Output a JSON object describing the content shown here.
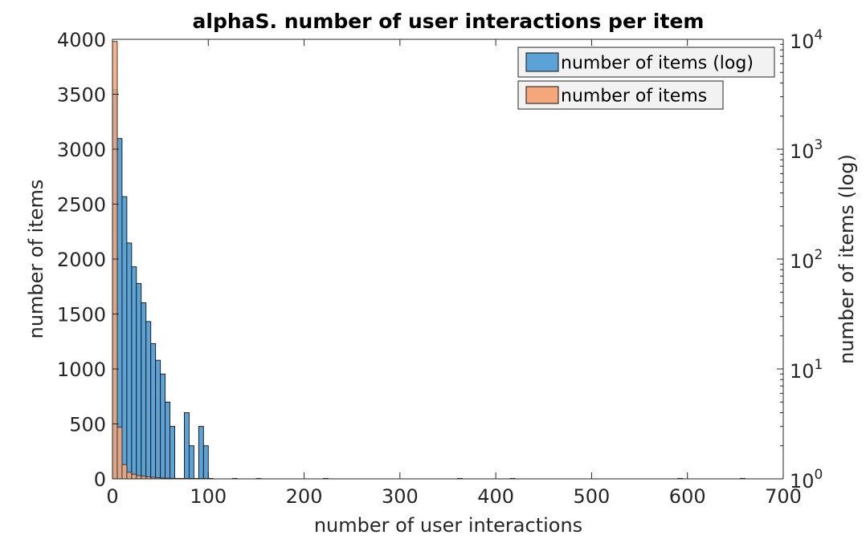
{
  "chart_data": {
    "type": "bar",
    "title": "alphaS. number of user interactions per item",
    "xlabel": "number of user interactions",
    "ylabel_left": "number of items",
    "ylabel_right": "number of items (log)",
    "xlim": [
      0,
      700
    ],
    "ylim_left": [
      0,
      4000
    ],
    "ylim_right": [
      1,
      10000
    ],
    "right_scale": "log",
    "x_ticks": [
      0,
      100,
      200,
      300,
      400,
      500,
      600,
      700
    ],
    "y_left_ticks": [
      0,
      500,
      1000,
      1500,
      2000,
      2500,
      3000,
      3500,
      4000
    ],
    "y_right_ticks": [
      {
        "base": "10",
        "exp": "0",
        "value": 1
      },
      {
        "base": "10",
        "exp": "1",
        "value": 10
      },
      {
        "base": "10",
        "exp": "2",
        "value": 100
      },
      {
        "base": "10",
        "exp": "3",
        "value": 1000
      },
      {
        "base": "10",
        "exp": "4",
        "value": 10000
      }
    ],
    "bin_width": 5,
    "legend_position": "top-right",
    "series": [
      {
        "name": "number of items (log)",
        "axis": "right",
        "color": "#5ba3d6",
        "bins": [
          {
            "x": 0,
            "v": 3500
          },
          {
            "x": 5,
            "v": 1250
          },
          {
            "x": 10,
            "v": 370
          },
          {
            "x": 15,
            "v": 140
          },
          {
            "x": 20,
            "v": 85
          },
          {
            "x": 25,
            "v": 60
          },
          {
            "x": 30,
            "v": 40
          },
          {
            "x": 35,
            "v": 27
          },
          {
            "x": 40,
            "v": 17
          },
          {
            "x": 45,
            "v": 12
          },
          {
            "x": 50,
            "v": 9
          },
          {
            "x": 55,
            "v": 5
          },
          {
            "x": 60,
            "v": 3
          },
          {
            "x": 65,
            "v": 1
          },
          {
            "x": 70,
            "v": 1
          },
          {
            "x": 75,
            "v": 4
          },
          {
            "x": 80,
            "v": 2
          },
          {
            "x": 85,
            "v": 1
          },
          {
            "x": 90,
            "v": 3
          },
          {
            "x": 95,
            "v": 2
          },
          {
            "x": 100,
            "v": 1
          },
          {
            "x": 125,
            "v": 1
          },
          {
            "x": 150,
            "v": 1
          },
          {
            "x": 220,
            "v": 1
          },
          {
            "x": 360,
            "v": 1
          },
          {
            "x": 415,
            "v": 1
          },
          {
            "x": 590,
            "v": 1
          },
          {
            "x": 655,
            "v": 1
          }
        ]
      },
      {
        "name": "number of items",
        "axis": "left",
        "color": "#f4a77a",
        "bins": [
          {
            "x": 0,
            "v": 3980
          },
          {
            "x": 5,
            "v": 470
          },
          {
            "x": 10,
            "v": 130
          },
          {
            "x": 15,
            "v": 60
          },
          {
            "x": 20,
            "v": 42
          },
          {
            "x": 25,
            "v": 30
          },
          {
            "x": 30,
            "v": 24
          },
          {
            "x": 35,
            "v": 18
          },
          {
            "x": 40,
            "v": 14
          },
          {
            "x": 45,
            "v": 10
          },
          {
            "x": 50,
            "v": 8
          },
          {
            "x": 55,
            "v": 6
          },
          {
            "x": 60,
            "v": 5
          },
          {
            "x": 65,
            "v": 4
          },
          {
            "x": 70,
            "v": 3
          },
          {
            "x": 75,
            "v": 3
          },
          {
            "x": 80,
            "v": 2
          },
          {
            "x": 85,
            "v": 2
          },
          {
            "x": 90,
            "v": 2
          },
          {
            "x": 95,
            "v": 1
          }
        ]
      }
    ]
  }
}
